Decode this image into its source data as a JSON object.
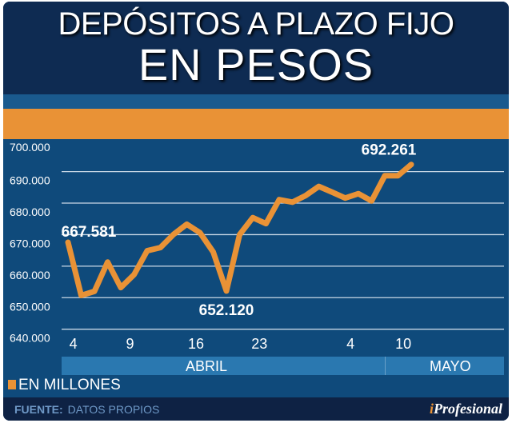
{
  "title": {
    "line1": "DEPÓSITOS A PLAZO FIJO",
    "line2": "EN PESOS"
  },
  "chart_data": {
    "type": "line",
    "title": "DEPÓSITOS A PLAZO FIJO EN PESOS",
    "ylabel": "EN MILLONES",
    "ylim": [
      640000,
      700000
    ],
    "yticks": [
      700000,
      690000,
      680000,
      670000,
      660000,
      650000,
      640000
    ],
    "ytick_labels": [
      "700.000",
      "690.000",
      "680.000",
      "670.000",
      "660.000",
      "650.000",
      "640.000"
    ],
    "grid": true,
    "values": [
      667581,
      650700,
      652000,
      661300,
      653200,
      657300,
      664900,
      665900,
      670100,
      673300,
      670600,
      664500,
      652120,
      670000,
      675400,
      673500,
      681100,
      680300,
      682400,
      685300,
      683500,
      681600,
      683000,
      680700,
      688700,
      688700,
      692261
    ],
    "xticks": [
      {
        "label": "4",
        "pos": 0.4
      },
      {
        "label": "9",
        "pos": 4.7
      },
      {
        "label": "16",
        "pos": 9.7
      },
      {
        "label": "23",
        "pos": 14.5
      },
      {
        "label": "4",
        "pos": 21.4
      },
      {
        "label": "10",
        "pos": 25.4
      }
    ],
    "months": [
      "ABRIL",
      "MAYO"
    ],
    "annotations": [
      {
        "index": 0,
        "text": "667.581"
      },
      {
        "index": 12,
        "text": "652.120"
      },
      {
        "index": 26,
        "text": "692.261"
      }
    ],
    "color": "#e99236",
    "legend": "EN MILLONES"
  },
  "footer": {
    "label": "FUENTE:",
    "source": "DATOS PROPIOS",
    "logo": "iProfesional"
  }
}
